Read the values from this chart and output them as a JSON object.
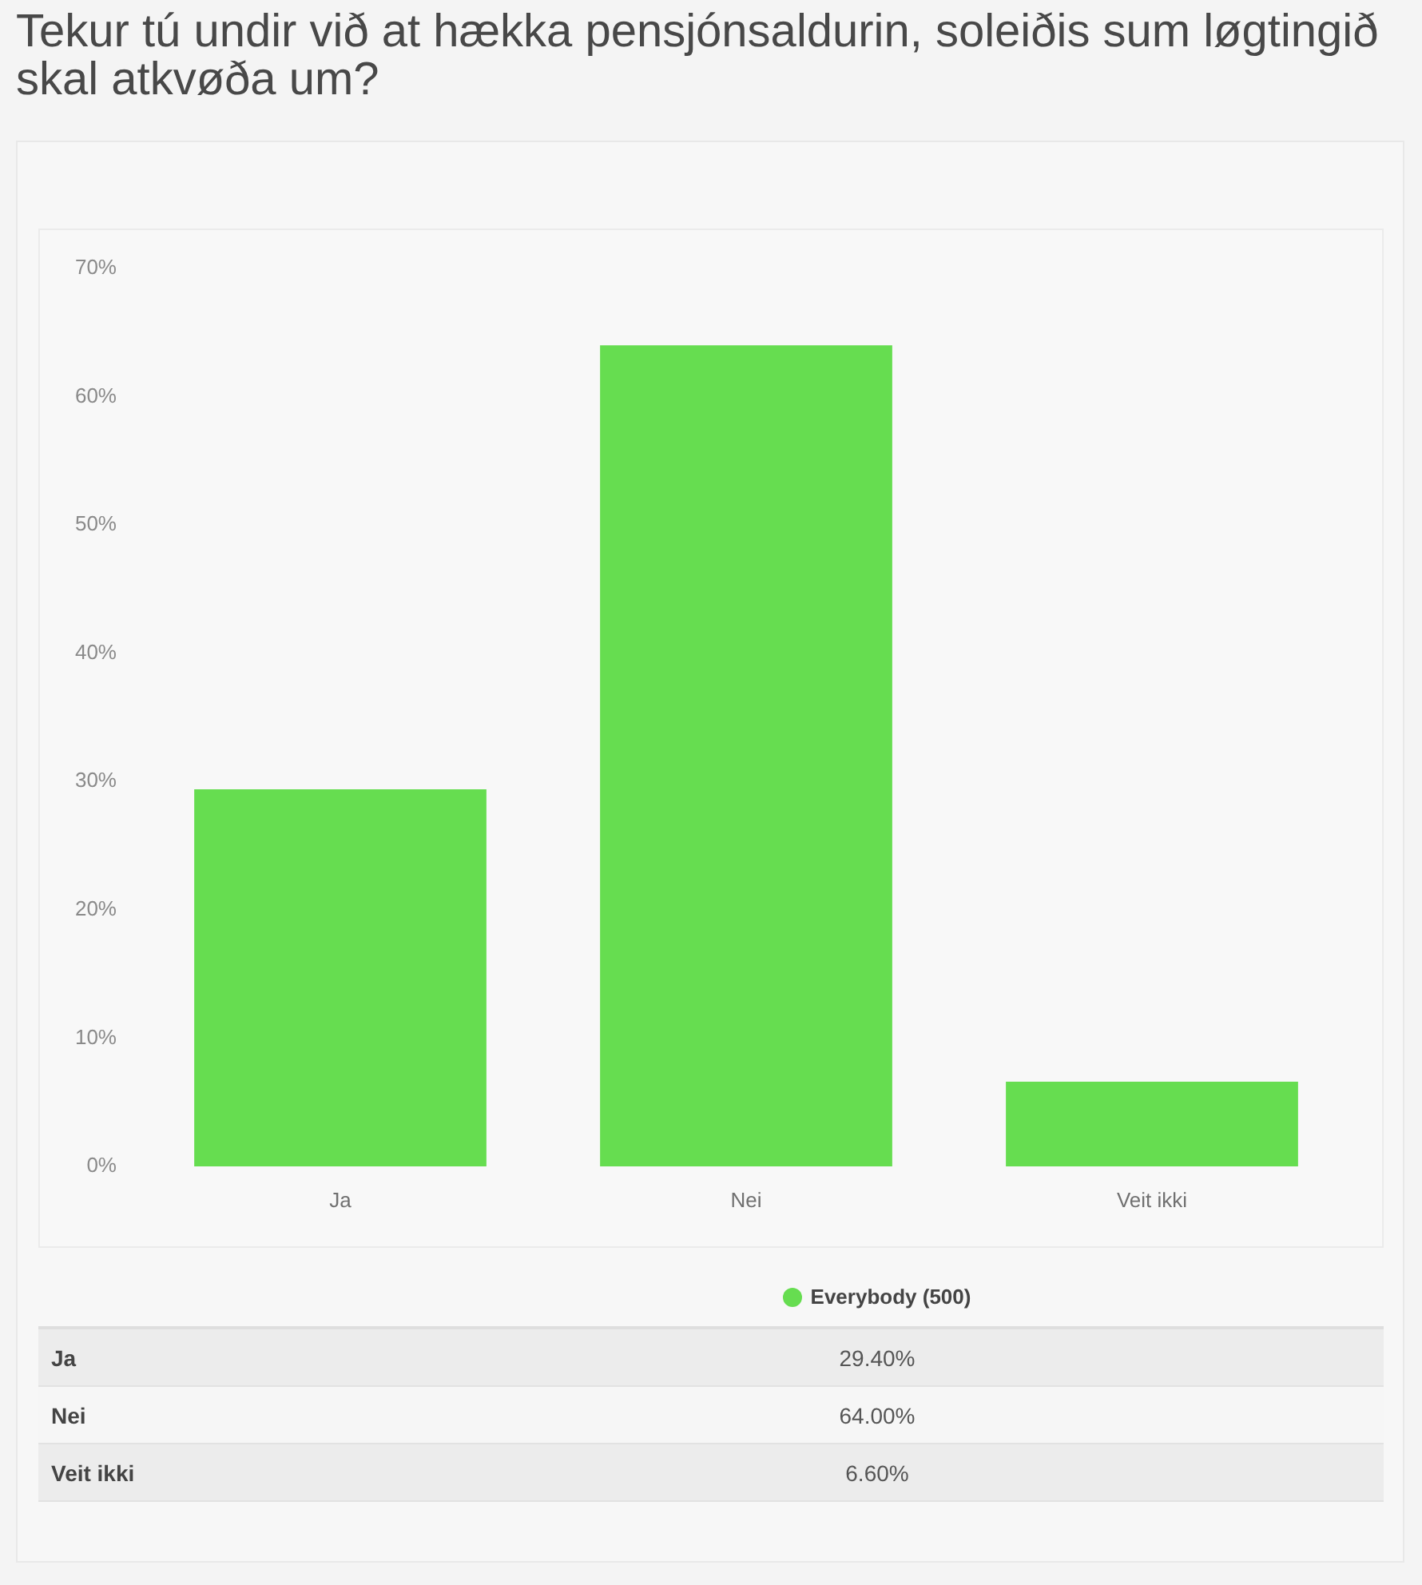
{
  "chart_data": {
    "type": "bar",
    "title": "Tekur tú undir við at hækka pensjónsaldurin, soleiðis sum løgtingið skal atkvøða um?",
    "categories": [
      "Ja",
      "Nei",
      "Veit ikki"
    ],
    "series": [
      {
        "name": "Everybody (500)",
        "color": "#66dd50",
        "values": [
          29.4,
          64.0,
          6.6
        ]
      }
    ],
    "ylim": [
      0,
      70
    ],
    "yticks": [
      {
        "value": 0,
        "label": "0%"
      },
      {
        "value": 10,
        "label": "10%"
      },
      {
        "value": 20,
        "label": "20%"
      },
      {
        "value": 30,
        "label": "30%"
      },
      {
        "value": 40,
        "label": "40%"
      },
      {
        "value": 50,
        "label": "50%"
      },
      {
        "value": 60,
        "label": "60%"
      },
      {
        "value": 70,
        "label": "70%"
      }
    ],
    "annotations": [
      "29.40%",
      "64.00%",
      "6.60%"
    ],
    "legend": "bottom"
  }
}
